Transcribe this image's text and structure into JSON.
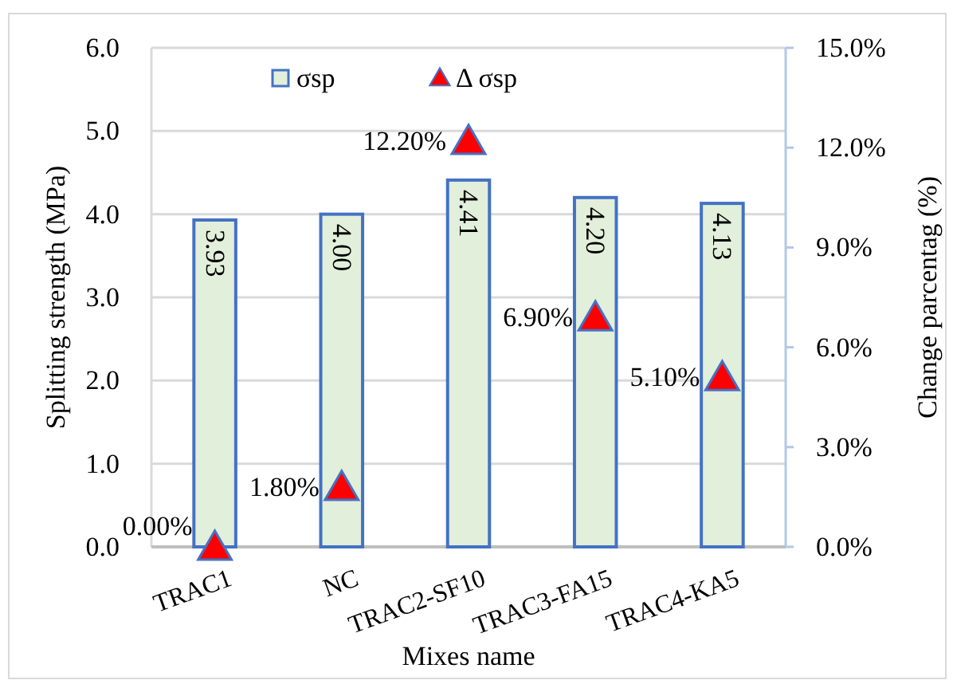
{
  "chart_data": {
    "type": "bar",
    "xlabel": "Mixes name",
    "ylabel": "Splitting strength (MPa)",
    "y2label": "Change parcentag (%)",
    "categories": [
      "TRAC1",
      "NC",
      "TRAC2-SF10",
      "TRAC3-FA15",
      "TRAC4-KA5"
    ],
    "series": [
      {
        "name": "σsp",
        "color": "#e2efda",
        "values": [
          3.93,
          4.0,
          4.41,
          4.2,
          4.13
        ],
        "value_labels": [
          "3.93",
          "4.00",
          "4.41",
          "4.20",
          "4.13"
        ]
      },
      {
        "name": "Δ σsp",
        "type": "scatter",
        "axis": "y2",
        "marker": "triangle",
        "color": "#ff0000",
        "values": [
          0,
          1.8,
          12.2,
          6.9,
          5.1
        ],
        "value_labels": [
          "0.00%",
          "1.80%",
          "12.20%",
          "6.90%",
          "5.10%"
        ]
      }
    ],
    "ylim": [
      0,
      6
    ],
    "yticks": [
      {
        "value": 0,
        "label": "0.0"
      },
      {
        "value": 1,
        "label": "1.0"
      },
      {
        "value": 2,
        "label": "2.0"
      },
      {
        "value": 3,
        "label": "3.0"
      },
      {
        "value": 4,
        "label": "4.0"
      },
      {
        "value": 5,
        "label": "5.0"
      },
      {
        "value": 6,
        "label": "6.0"
      }
    ],
    "y2lim": [
      0,
      15
    ],
    "y2ticks": [
      {
        "value": 0,
        "label": "0.0%"
      },
      {
        "value": 3,
        "label": "3.0%"
      },
      {
        "value": 6,
        "label": "6.0%"
      },
      {
        "value": 9,
        "label": "9.0%"
      },
      {
        "value": 12,
        "label": "12.0%"
      },
      {
        "value": 15,
        "label": "15.0%"
      }
    ],
    "grid": "y",
    "legend": "top"
  }
}
